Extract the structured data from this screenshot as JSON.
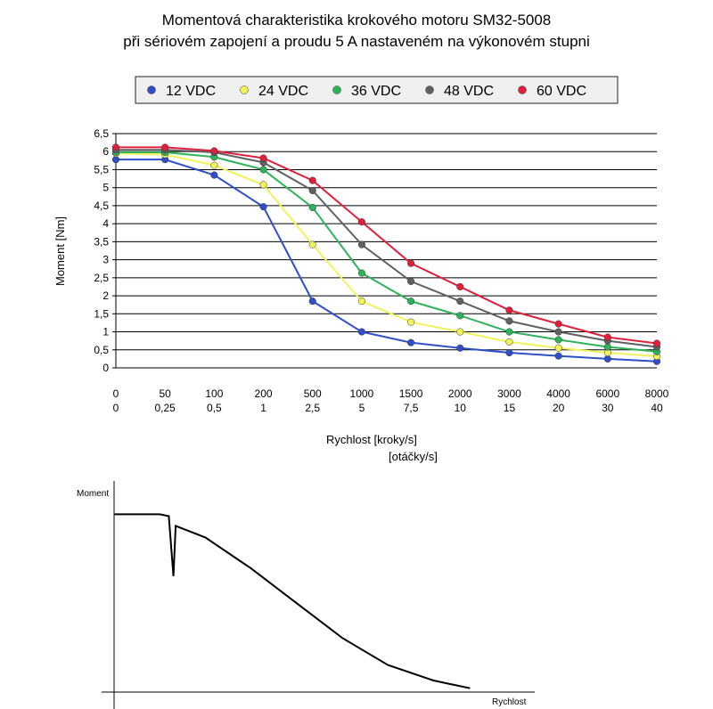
{
  "chart_data": [
    {
      "type": "line",
      "title": "Momentová charakteristika krokového motoru SM32-5008",
      "subtitle": "při sériovém zapojení a proudu 5 A nastaveném na výkonovém stupni",
      "ylabel": "Moment [Nm]",
      "xlabel": "Rychlost [kroky/s]",
      "xlabel2": "[otáčky/s]",
      "categories": [
        "0",
        "50",
        "100",
        "200",
        "500",
        "1000",
        "1500",
        "2000",
        "3000",
        "4000",
        "6000",
        "8000"
      ],
      "categories2": [
        "0",
        "0,25",
        "0,5",
        "1",
        "2,5",
        "5",
        "7,5",
        "10",
        "15",
        "20",
        "30",
        "40"
      ],
      "ylim": [
        0,
        6.5
      ],
      "yticks": [
        "0",
        "0,5",
        "1",
        "1,5",
        "2",
        "2,5",
        "3",
        "3,5",
        "4",
        "4,5",
        "5",
        "5,5",
        "6",
        "6,5"
      ],
      "grid": true,
      "legend_position": "top",
      "series": [
        {
          "name": "12 VDC",
          "color": "#2f4fc8",
          "values": [
            5.78,
            5.78,
            5.35,
            4.47,
            1.85,
            1.0,
            0.7,
            0.55,
            0.42,
            0.33,
            0.25,
            0.18
          ]
        },
        {
          "name": "24 VDC",
          "color": "#f2f25a",
          "values": [
            5.95,
            5.92,
            5.62,
            5.08,
            3.42,
            1.85,
            1.27,
            1.0,
            0.72,
            0.55,
            0.42,
            0.32
          ]
        },
        {
          "name": "36 VDC",
          "color": "#2fb35a",
          "values": [
            5.98,
            5.98,
            5.85,
            5.5,
            4.45,
            2.63,
            1.85,
            1.45,
            1.0,
            0.78,
            0.58,
            0.45
          ]
        },
        {
          "name": "48 VDC",
          "color": "#606060",
          "values": [
            6.05,
            6.05,
            5.98,
            5.7,
            4.92,
            3.42,
            2.4,
            1.85,
            1.3,
            1.0,
            0.75,
            0.58
          ]
        },
        {
          "name": "60 VDC",
          "color": "#e0203a",
          "values": [
            6.12,
            6.12,
            6.02,
            5.82,
            5.2,
            4.05,
            2.9,
            2.25,
            1.6,
            1.22,
            0.85,
            0.68
          ]
        }
      ]
    },
    {
      "type": "line",
      "ylabel": "Moment",
      "xlabel": "Rychlost",
      "grid": false,
      "ticks": false,
      "note": "schematic curve, no numeric scale",
      "curve": [
        [
          0.0,
          0.92
        ],
        [
          0.1,
          0.92
        ],
        [
          0.12,
          0.91
        ],
        [
          0.13,
          0.6
        ],
        [
          0.135,
          0.86
        ],
        [
          0.2,
          0.8
        ],
        [
          0.3,
          0.64
        ],
        [
          0.4,
          0.46
        ],
        [
          0.5,
          0.28
        ],
        [
          0.6,
          0.14
        ],
        [
          0.7,
          0.06
        ],
        [
          0.78,
          0.02
        ]
      ]
    }
  ]
}
